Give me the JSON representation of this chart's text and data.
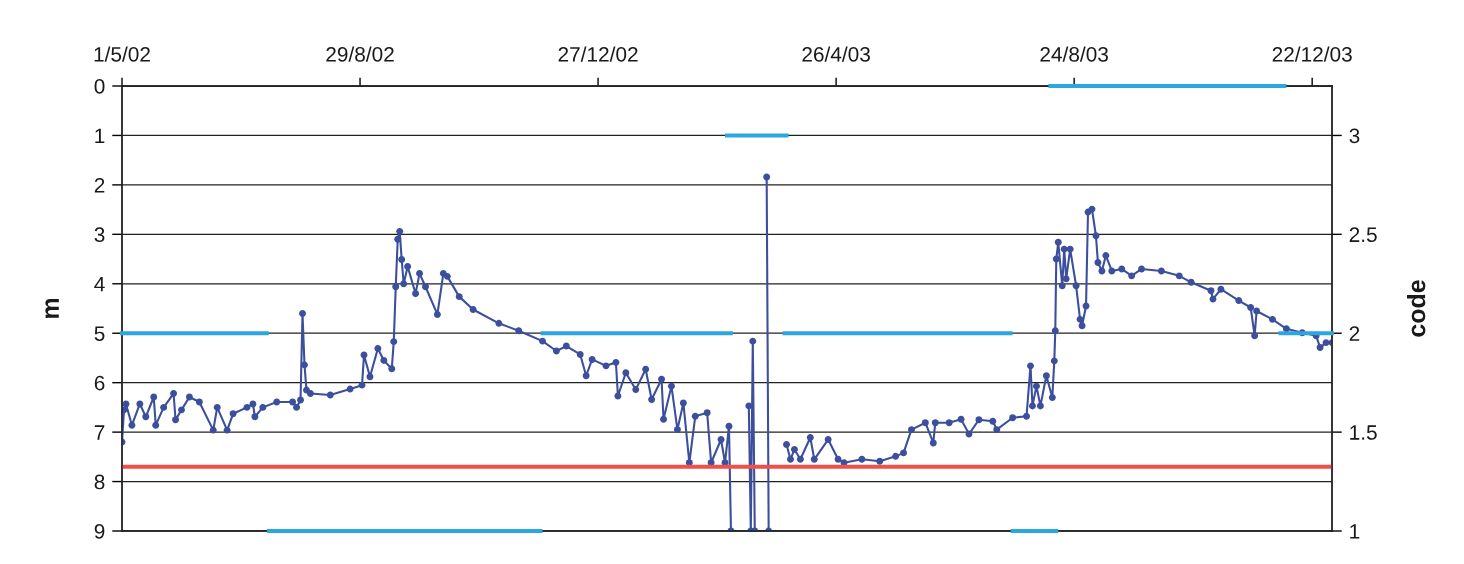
{
  "chart_data": {
    "type": "line",
    "ylabel": "m",
    "y2label": "code",
    "xlim": [
      "2002-05-01",
      "2004-01-01"
    ],
    "xticks": [
      {
        "value": "2002-05-01",
        "label": "1/5/02"
      },
      {
        "value": "2002-08-29",
        "label": "29/8/02"
      },
      {
        "value": "2002-12-27",
        "label": "27/12/02"
      },
      {
        "value": "2003-04-26",
        "label": "26/4/03"
      },
      {
        "value": "2003-08-24",
        "label": "24/8/03"
      },
      {
        "value": "2003-12-22",
        "label": "22/12/03"
      }
    ],
    "ylim": [
      9,
      0
    ],
    "yticks": [
      0,
      1,
      2,
      3,
      4,
      5,
      6,
      7,
      8,
      9
    ],
    "y2lim": [
      1,
      3.25
    ],
    "y2ticks": [
      1,
      1.5,
      2,
      2.5,
      3
    ],
    "grid": "y",
    "series": [
      {
        "color": "#3c4f9c",
        "marker": "circle",
        "line_style": "solid",
        "x": [
          "2002-05-01",
          "2002-05-02",
          "2002-05-03",
          "2002-05-06",
          "2002-05-10",
          "2002-05-13",
          "2002-05-17",
          "2002-05-18",
          "2002-05-22",
          "2002-05-27",
          "2002-05-28",
          "2002-05-31",
          "2002-06-04",
          "2002-06-09",
          "2002-06-16",
          "2002-06-18",
          "2002-06-23",
          "2002-06-26",
          "2002-07-03",
          "2002-07-06",
          "2002-07-07",
          "2002-07-11",
          "2002-07-18",
          "2002-07-26",
          "2002-07-28",
          "2002-07-30",
          "2002-07-31",
          "2002-08-01",
          "2002-08-02",
          "2002-08-04",
          "2002-08-14",
          "2002-08-24",
          "2002-08-30",
          "2002-08-31",
          "2002-09-03",
          "2002-09-07",
          "2002-09-10",
          "2002-09-14",
          "2002-09-15",
          "2002-09-16",
          "2002-09-17",
          "2002-09-18",
          "2002-09-19",
          "2002-09-20",
          "2002-09-22",
          "2002-09-26",
          "2002-09-28",
          "2002-10-01",
          "2002-10-07",
          "2002-10-10",
          "2002-10-12",
          "2002-10-18",
          "2002-10-25",
          "2002-11-07",
          "2002-11-17",
          "2002-11-29",
          "2002-12-06",
          "2002-12-11",
          "2002-12-18",
          "2002-12-21",
          "2002-12-24",
          "2002-12-31",
          "2003-01-05",
          "2003-01-06",
          "2003-01-10",
          "2003-01-15",
          "2003-01-20",
          "2003-01-23",
          "2003-01-28",
          "2003-01-29",
          "2003-02-02",
          "2003-02-05",
          "2003-02-08",
          "2003-02-11",
          "2003-02-14",
          "2003-02-20",
          "2003-02-22",
          "2003-02-27",
          "2003-03-01",
          "2003-03-03",
          "2003-03-04",
          "2003-03-08",
          "2003-03-13",
          "2003-03-14",
          "2003-03-15",
          "2003-03-16",
          "2003-03-19",
          "2003-03-22",
          "2003-03-23",
          "2003-03-27",
          "2003-04-01",
          "2003-04-03",
          "2003-04-05",
          "2003-04-08",
          "2003-04-13",
          "2003-04-15",
          "2003-04-22",
          "2003-04-27",
          "2003-04-30",
          "2003-05-09",
          "2003-05-18",
          "2003-05-26",
          "2003-05-30",
          "2003-06-03",
          "2003-06-10",
          "2003-06-14",
          "2003-06-15",
          "2003-06-22",
          "2003-06-28",
          "2003-07-02",
          "2003-07-07",
          "2003-07-14",
          "2003-07-16",
          "2003-07-24",
          "2003-07-31",
          "2003-08-02",
          "2003-08-03",
          "2003-08-05",
          "2003-08-07",
          "2003-08-10",
          "2003-08-13",
          "2003-08-14",
          "2003-08-14T12:00",
          "2003-08-15",
          "2003-08-16",
          "2003-08-18",
          "2003-08-19",
          "2003-08-20",
          "2003-08-22",
          "2003-08-25",
          "2003-08-27",
          "2003-08-28",
          "2003-08-30",
          "2003-08-31",
          "2003-09-02",
          "2003-09-04",
          "2003-09-05",
          "2003-09-07",
          "2003-09-09",
          "2003-09-12",
          "2003-09-17",
          "2003-09-22",
          "2003-09-27",
          "2003-10-07",
          "2003-10-16",
          "2003-10-22",
          "2003-11-01",
          "2003-11-02",
          "2003-11-06",
          "2003-11-15",
          "2003-11-21",
          "2003-11-23",
          "2003-11-24",
          "2003-12-02",
          "2003-12-09",
          "2003-12-17",
          "2003-12-24",
          "2003-12-26",
          "2003-12-29",
          "2004-01-01"
        ],
        "values": [
          7.2,
          6.55,
          6.43,
          6.86,
          6.43,
          6.69,
          6.29,
          6.86,
          6.5,
          6.22,
          6.75,
          6.55,
          6.29,
          6.39,
          6.96,
          6.5,
          6.96,
          6.63,
          6.5,
          6.43,
          6.69,
          6.5,
          6.39,
          6.39,
          6.5,
          6.35,
          4.6,
          5.64,
          6.15,
          6.22,
          6.25,
          6.13,
          6.05,
          5.44,
          5.88,
          5.31,
          5.55,
          5.72,
          5.17,
          4.06,
          3.1,
          2.94,
          3.51,
          4.0,
          3.65,
          4.2,
          3.79,
          4.06,
          4.62,
          3.79,
          3.85,
          4.26,
          4.52,
          4.8,
          4.95,
          5.16,
          5.36,
          5.26,
          5.43,
          5.86,
          5.53,
          5.66,
          5.59,
          6.27,
          5.8,
          6.14,
          5.73,
          6.34,
          5.93,
          6.74,
          6.07,
          6.95,
          6.41,
          7.62,
          6.68,
          6.61,
          7.62,
          7.15,
          7.62,
          6.88,
          9,
          null,
          6.47,
          9,
          5.16,
          9,
          null,
          1.84,
          9,
          null,
          7.25,
          7.55,
          7.35,
          7.55,
          7.11,
          7.55,
          7.15,
          7.55,
          7.62,
          7.55,
          7.59,
          7.49,
          7.42,
          6.95,
          6.81,
          7.22,
          6.81,
          6.81,
          6.74,
          7.04,
          6.75,
          6.78,
          6.95,
          6.71,
          6.68,
          5.66,
          6.47,
          6.07,
          6.47,
          5.86,
          6.3,
          5.56,
          4.95,
          3.5,
          3.16,
          4.04,
          3.3,
          3.9,
          3.3,
          4.04,
          4.72,
          4.85,
          4.45,
          2.55,
          2.49,
          3.03,
          3.57,
          3.74,
          3.43,
          3.74,
          3.7,
          3.84,
          3.7,
          3.74,
          3.84,
          3.97,
          4.14,
          4.31,
          4.11,
          4.34,
          4.48,
          5.05,
          4.55,
          4.72,
          4.91,
          4.99,
          5.05,
          5.29,
          5.19,
          5.19
        ]
      },
      {
        "axis": "y2",
        "color": "#2aa7e0",
        "marker": "none",
        "line_style": "solid",
        "x": [
          "2002-05-01",
          "2002-07-13"
        ],
        "values": [
          2,
          2
        ]
      },
      {
        "axis": "y2",
        "color": "#2aa7e0",
        "marker": "none",
        "line_style": "solid",
        "x": [
          "2002-07-14",
          "2002-11-28"
        ],
        "values": [
          1,
          1
        ]
      },
      {
        "axis": "y2",
        "color": "#2aa7e0",
        "marker": "none",
        "line_style": "solid",
        "x": [
          "2002-11-29",
          "2003-03-04"
        ],
        "values": [
          2,
          2
        ]
      },
      {
        "axis": "y2",
        "color": "#2aa7e0",
        "marker": "none",
        "line_style": "solid",
        "x": [
          "2003-03-02",
          "2003-04-01"
        ],
        "values": [
          3,
          3
        ]
      },
      {
        "axis": "y2",
        "color": "#2aa7e0",
        "marker": "none",
        "line_style": "solid",
        "x": [
          "2003-03-31",
          "2003-07-23"
        ],
        "values": [
          2,
          2
        ]
      },
      {
        "axis": "y2",
        "color": "#2aa7e0",
        "marker": "none",
        "line_style": "solid",
        "x": [
          "2003-07-24",
          "2003-08-15"
        ],
        "values": [
          1,
          1
        ]
      },
      {
        "axis": "y2",
        "color": "#2aa7e0",
        "marker": "none",
        "line_style": "solid",
        "x": [
          "2003-08-12",
          "2003-12-08"
        ],
        "values": [
          3.25,
          3.25
        ]
      },
      {
        "axis": "y2",
        "color": "#2aa7e0",
        "marker": "none",
        "line_style": "solid",
        "x": [
          "2003-12-06",
          "2004-01-01"
        ],
        "values": [
          2,
          2
        ]
      }
    ],
    "ref_lines": [
      {
        "axis": "y",
        "value": 7.7,
        "color": "#f0504a",
        "line_style": "solid"
      }
    ]
  }
}
